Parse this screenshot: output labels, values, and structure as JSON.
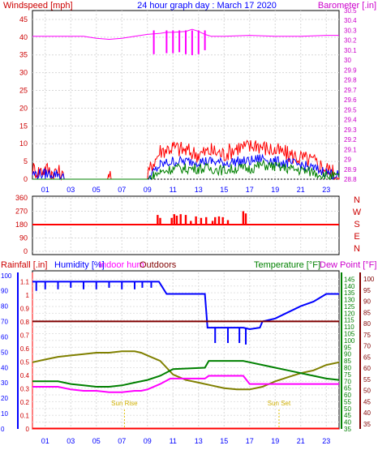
{
  "chart_data": [
    {
      "type": "line",
      "title": "24 hour graph day : March 17 2020",
      "left_axis_label": "Windspeed [mph]",
      "right_axis_label": "Barometer [.in]",
      "x_tick_labels": [
        "01",
        "03",
        "05",
        "07",
        "09",
        "11",
        "13",
        "15",
        "17",
        "19",
        "21",
        "23"
      ],
      "left_ticks": [
        "0",
        "5",
        "10",
        "15",
        "20",
        "25",
        "30",
        "35",
        "40",
        "45"
      ],
      "right_ticks": [
        "28.8",
        "28.9",
        "29",
        "29.1",
        "29.2",
        "29.3",
        "29.4",
        "29.5",
        "29.6",
        "29.7",
        "29.8",
        "29.9",
        "30",
        "30.1",
        "30.2",
        "30.3",
        "30.4",
        "30.5"
      ],
      "ylim_left": [
        0,
        47.5
      ],
      "ylim_right": [
        28.8,
        30.5
      ],
      "x_range_hours": [
        0,
        24
      ],
      "series": [
        {
          "color": "#ff00ff",
          "axis": "right",
          "x": [
            0,
            2,
            4,
            5,
            6,
            7,
            8,
            9,
            10,
            10.5,
            11,
            12,
            12.5,
            13,
            13.5,
            14,
            15,
            17,
            19,
            21,
            23,
            24
          ],
          "y": [
            30.24,
            30.24,
            30.24,
            30.22,
            30.21,
            30.22,
            30.24,
            30.26,
            30.27,
            30.28,
            30.28,
            30.29,
            30.31,
            30.29,
            30.26,
            30.24,
            30.24,
            30.25,
            30.24,
            30.24,
            30.25,
            30.25
          ],
          "drop_x": [
            9.5,
            10.5,
            11.0,
            11.5,
            12.0,
            12.5,
            13.0,
            13.5
          ],
          "drop_to": [
            30.06,
            30.07,
            30.07,
            30.08,
            30.06,
            30.05,
            30.06,
            30.1
          ]
        },
        {
          "color": "#ff0000",
          "axis": "left",
          "x": [
            0,
            0.5,
            1,
            1.5,
            2,
            2.5,
            5.8,
            6,
            6.2,
            9,
            9.3,
            9.7,
            10,
            11,
            12,
            13,
            14,
            15,
            16,
            17,
            17.5,
            18,
            19,
            20,
            21,
            22,
            23,
            23.5,
            24
          ],
          "y": [
            3,
            2,
            3,
            2,
            2,
            0,
            0,
            2,
            0,
            0,
            4,
            6,
            8,
            9,
            8,
            7,
            8,
            7,
            9,
            9,
            10,
            9,
            8,
            7,
            6,
            5,
            3,
            2,
            1
          ]
        },
        {
          "color": "#0000ff",
          "axis": "left",
          "x": [
            0,
            1,
            2,
            2.5,
            9,
            9.5,
            10,
            11,
            12,
            13,
            14,
            15,
            16,
            17,
            18,
            19,
            20,
            21,
            22,
            23,
            24
          ],
          "y": [
            1.5,
            1.5,
            1.5,
            0,
            0,
            2,
            4,
            5,
            5,
            5,
            5,
            4.5,
            5,
            5,
            6,
            5,
            4.5,
            4,
            3,
            2,
            1
          ]
        },
        {
          "color": "#008000",
          "axis": "left",
          "x": [
            0,
            9,
            9.5,
            10,
            11,
            12,
            13,
            14,
            15,
            16,
            17,
            18,
            19,
            20,
            21,
            22,
            23,
            24
          ],
          "y": [
            0,
            0,
            1,
            2,
            3,
            3,
            3,
            3,
            2.5,
            3,
            3,
            4,
            3.5,
            3,
            2.5,
            2,
            1,
            0.5
          ]
        }
      ]
    },
    {
      "type": "bar",
      "title": "",
      "y_ticks": [
        "360",
        "270",
        "180",
        "90",
        "0"
      ],
      "ylim": [
        0,
        360
      ],
      "compass_labels": [
        "N",
        "W",
        "S",
        "E",
        "N"
      ],
      "baseline_series": {
        "color": "#ff0000",
        "value": 180
      },
      "bars": {
        "color": "#ff0000",
        "x": [
          9.8,
          10.0,
          10.9,
          11.1,
          11.3,
          11.6,
          12.0,
          12.4,
          12.8,
          13.2,
          13.6,
          14.1,
          14.3,
          14.6,
          14.9,
          15.3,
          16.5,
          16.7
        ],
        "y": [
          245,
          225,
          225,
          250,
          240,
          250,
          245,
          205,
          235,
          225,
          230,
          205,
          230,
          235,
          230,
          210,
          270,
          255
        ]
      }
    },
    {
      "type": "line",
      "title": "",
      "top_labels": {
        "rainfall": "Rainfall [.in]",
        "humidity": "Humidity [%]",
        "indoor": "Indoor hum",
        "outdoors": "Outdoors",
        "temperature": "Temperature [°F]",
        "dewpoint": "Dew Point [°F]"
      },
      "left1_ticks": [
        "0",
        "10",
        "20",
        "30",
        "40",
        "50",
        "60",
        "70",
        "80",
        "90",
        "100"
      ],
      "left2_ticks": [
        "0",
        "0.1",
        "0.2",
        "0.3",
        "0.4",
        "0.5",
        "0.6",
        "0.7",
        "0.8",
        "0.9",
        "1",
        "1.1"
      ],
      "right_ticks": [
        "35",
        "40",
        "45",
        "50",
        "55",
        "60",
        "65",
        "70",
        "75",
        "80",
        "85",
        "90",
        "95",
        "100",
        "105",
        "110",
        "115",
        "120",
        "125",
        "130",
        "135",
        "140",
        "145"
      ],
      "right2_ticks": [
        "35",
        "40",
        "45",
        "50",
        "55",
        "60",
        "65",
        "70",
        "75",
        "80",
        "85",
        "90",
        "95",
        "100"
      ],
      "ylim_humidity": [
        0,
        102
      ],
      "ylim_temperature": [
        35,
        150
      ],
      "annotations": [
        {
          "text": "Sun Rise",
          "x_hour": 7.2
        },
        {
          "text": "Sun Set",
          "x_hour": 19.3
        }
      ],
      "series": [
        {
          "color": "#0000ff",
          "axis": "humidity",
          "x": [
            0,
            9.9,
            10.5,
            13.5,
            13.7,
            16.5,
            17.0,
            17.8,
            18.0,
            19,
            20,
            21,
            22,
            23,
            24
          ],
          "y": [
            96,
            96,
            88,
            88,
            66,
            66,
            65,
            66,
            70,
            72,
            76,
            80,
            83,
            88,
            88
          ],
          "spikes_x": [
            0.3,
            1.0,
            2.0,
            3.0,
            4.0,
            5.0,
            6.0,
            7.0,
            8.0,
            8.6,
            9.3,
            14.3,
            15.3,
            16.2,
            16.7
          ],
          "spikes_to": [
            90,
            91,
            91,
            92,
            91,
            91,
            92,
            91,
            91,
            92,
            92,
            56,
            56,
            56,
            55
          ]
        },
        {
          "color": "#800000",
          "axis": "temperature",
          "x": [
            0,
            24
          ],
          "y": [
            114,
            114
          ]
        },
        {
          "color": "#808000",
          "axis": "temperature",
          "x": [
            0,
            1,
            2,
            3,
            4,
            5,
            6,
            7,
            8,
            8.5,
            9,
            10,
            10.5,
            11,
            12,
            13,
            14,
            15,
            16,
            17,
            18,
            19,
            20,
            21,
            22,
            23,
            24
          ],
          "y": [
            84,
            86,
            88,
            89,
            90,
            91,
            91,
            92,
            92,
            91,
            89,
            85,
            80,
            75,
            71,
            69,
            67,
            65,
            64,
            64,
            66,
            70,
            73,
            76,
            78,
            82,
            84
          ]
        },
        {
          "color": "#008000",
          "axis": "temperature",
          "x": [
            0,
            2,
            3,
            4,
            5,
            6,
            7,
            8,
            9,
            10,
            11,
            13.5,
            13.8,
            16.5,
            17.0,
            18,
            19,
            20,
            21,
            22,
            23,
            24
          ],
          "y": [
            70,
            70,
            68,
            67,
            66,
            66,
            67,
            69,
            71,
            74,
            79,
            80,
            85,
            85,
            84,
            82,
            80,
            78,
            76,
            74,
            72,
            71
          ]
        },
        {
          "color": "#ff00ff",
          "axis": "temperature",
          "x": [
            0,
            2,
            3,
            4,
            5,
            6,
            7,
            8,
            8.5,
            9,
            10,
            10.8,
            13.5,
            13.8,
            16.5,
            17.0,
            18,
            24
          ],
          "y": [
            66,
            66,
            64,
            63,
            63,
            62,
            62,
            63,
            63,
            64,
            68,
            72,
            72,
            74,
            74,
            68,
            68,
            68
          ]
        },
        {
          "color": "#ff0000",
          "axis": "rain",
          "x": [
            0,
            24
          ],
          "y": [
            0,
            0
          ]
        }
      ]
    }
  ]
}
